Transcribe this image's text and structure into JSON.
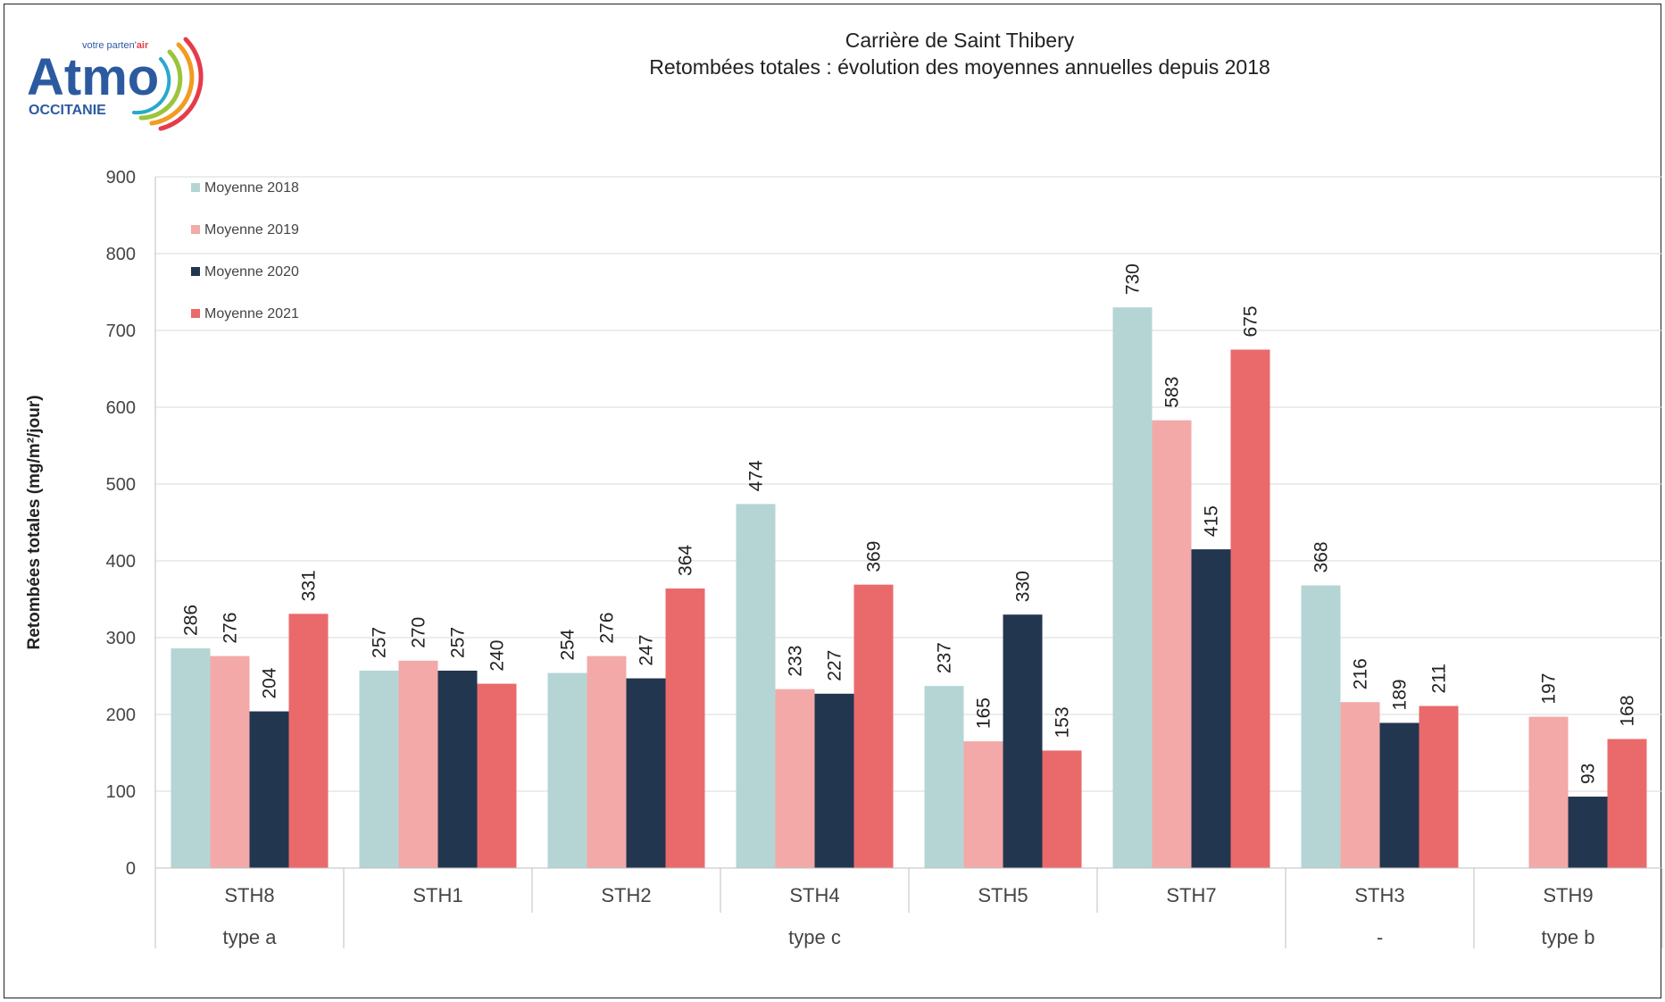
{
  "logo": {
    "brand": "Atmo",
    "region": "OCCITANIE",
    "tagline_prefix": "votre parten'",
    "tagline_accent": "air"
  },
  "chart_data": {
    "type": "bar",
    "title": "Carrière de Saint Thibery",
    "subtitle": "Retombées totales : évolution des moyennes annuelles depuis 2018",
    "ylabel": "Retombées totales (mg/m²/jour)",
    "xlabel": "",
    "ylim": [
      0,
      900
    ],
    "yticks": [
      0,
      100,
      200,
      300,
      400,
      500,
      600,
      700,
      800,
      900
    ],
    "grid": true,
    "legend_position": "top-left",
    "categories": [
      "STH8",
      "STH1",
      "STH2",
      "STH4",
      "STH5",
      "STH7",
      "STH3",
      "STH9"
    ],
    "groups": [
      {
        "label": "type a",
        "from": 0,
        "to": 0
      },
      {
        "label": "type c",
        "from": 1,
        "to": 5
      },
      {
        "label": "-",
        "from": 6,
        "to": 6
      },
      {
        "label": "type b",
        "from": 7,
        "to": 7
      }
    ],
    "series": [
      {
        "name": "Moyenne 2018",
        "color": "#b5d5d5",
        "values": [
          286,
          257,
          254,
          474,
          237,
          730,
          368,
          null
        ]
      },
      {
        "name": "Moyenne 2019",
        "color": "#f2a9a8",
        "values": [
          276,
          270,
          276,
          233,
          165,
          583,
          216,
          197
        ]
      },
      {
        "name": "Moyenne 2020",
        "color": "#233650",
        "values": [
          204,
          257,
          247,
          227,
          330,
          415,
          189,
          93
        ]
      },
      {
        "name": "Moyenne 2021",
        "color": "#ea6a6c",
        "values": [
          331,
          240,
          364,
          369,
          153,
          675,
          211,
          168
        ]
      }
    ]
  }
}
